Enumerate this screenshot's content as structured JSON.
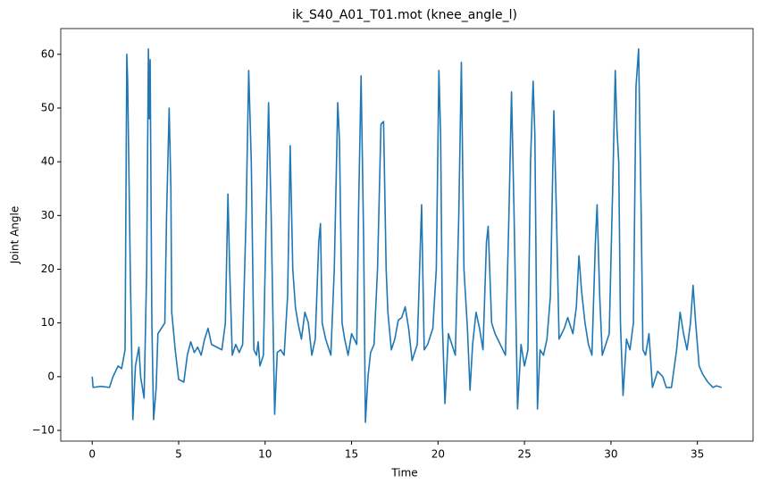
{
  "chart_data": {
    "type": "line",
    "title": "ik_S40_A01_T01.mot (knee_angle_l)",
    "x_label": "Time",
    "y_label": "Joint Angle",
    "xlim": [
      -1.82,
      38.22
    ],
    "ylim": [
      -11.99,
      64.79
    ],
    "xticks": [
      0,
      5,
      10,
      15,
      20,
      25,
      30,
      35
    ],
    "yticks": [
      {
        "value": -10,
        "label": "−10"
      },
      0,
      10,
      20,
      30,
      40,
      50,
      60
    ],
    "grid": false,
    "series": [
      {
        "name": "knee_angle_l",
        "color": "#1f77b4",
        "x": [
          0,
          0.05,
          0.5,
          1.0,
          1.2,
          1.5,
          1.7,
          1.9,
          2.0,
          2.05,
          2.2,
          2.35,
          2.5,
          2.7,
          2.8,
          3.0,
          3.15,
          3.25,
          3.3,
          3.35,
          3.45,
          3.55,
          3.7,
          3.8,
          4.0,
          4.2,
          4.3,
          4.45,
          4.55,
          4.6,
          4.8,
          5.0,
          5.3,
          5.5,
          5.7,
          5.9,
          6.1,
          6.3,
          6.5,
          6.7,
          6.9,
          7.2,
          7.5,
          7.7,
          7.85,
          7.95,
          8.1,
          8.3,
          8.5,
          8.7,
          8.9,
          9.05,
          9.2,
          9.35,
          9.5,
          9.6,
          9.7,
          9.9,
          10.0,
          10.2,
          10.35,
          10.55,
          10.7,
          10.9,
          11.1,
          11.3,
          11.45,
          11.6,
          11.75,
          11.9,
          12.1,
          12.3,
          12.5,
          12.7,
          12.9,
          13.1,
          13.2,
          13.3,
          13.5,
          13.8,
          14.0,
          14.2,
          14.3,
          14.45,
          14.6,
          14.8,
          15.0,
          15.3,
          15.4,
          15.55,
          15.7,
          15.8,
          15.95,
          16.1,
          16.3,
          16.5,
          16.7,
          16.85,
          17.0,
          17.1,
          17.3,
          17.5,
          17.7,
          17.9,
          18.1,
          18.3,
          18.5,
          18.8,
          19.05,
          19.2,
          19.4,
          19.7,
          19.9,
          20.05,
          20.15,
          20.25,
          20.4,
          20.6,
          20.8,
          21.0,
          21.2,
          21.35,
          21.5,
          21.7,
          21.85,
          22.0,
          22.2,
          22.4,
          22.6,
          22.8,
          22.9,
          23.1,
          23.3,
          23.6,
          23.9,
          24.1,
          24.25,
          24.4,
          24.6,
          24.8,
          25.0,
          25.2,
          25.35,
          25.5,
          25.6,
          25.75,
          25.9,
          26.1,
          26.3,
          26.5,
          26.7,
          26.85,
          27.0,
          27.3,
          27.5,
          27.8,
          28.0,
          28.15,
          28.3,
          28.5,
          28.7,
          28.9,
          29.1,
          29.2,
          29.35,
          29.5,
          29.7,
          29.9,
          30.1,
          30.25,
          30.35,
          30.45,
          30.55,
          30.7,
          30.9,
          31.1,
          31.3,
          31.45,
          31.6,
          31.75,
          31.85,
          32.0,
          32.2,
          32.4,
          32.7,
          33.0,
          33.2,
          33.5,
          33.8,
          34.0,
          34.2,
          34.4,
          34.6,
          34.75,
          34.9,
          35.1,
          35.3,
          35.6,
          35.9,
          36.1,
          36.4
        ],
        "values": [
          0,
          -2,
          -1.8,
          -2,
          0,
          2,
          1.5,
          5,
          60,
          55,
          20,
          -8,
          2,
          5.5,
          0,
          -4,
          20,
          61,
          48,
          59,
          10,
          -8,
          -2,
          8,
          9,
          10,
          30,
          50,
          35,
          12,
          5,
          -0.5,
          -1,
          4,
          6.5,
          4.5,
          5.5,
          4,
          7,
          9,
          6,
          5.5,
          5,
          10,
          34,
          20,
          4,
          6,
          4.5,
          6,
          30,
          57,
          40,
          5,
          4,
          6.5,
          2,
          4,
          20,
          51,
          30,
          -7,
          4.5,
          5,
          4,
          15,
          43,
          20,
          13,
          10,
          7,
          12,
          10,
          4,
          7,
          25,
          28.5,
          10,
          7,
          4,
          20,
          51,
          44,
          10,
          7,
          4,
          8,
          6,
          30,
          56,
          25,
          -8.5,
          0,
          4.5,
          6,
          20,
          47,
          47.5,
          20,
          12,
          5,
          7,
          10.5,
          11,
          13,
          9,
          3,
          6,
          32,
          5,
          6,
          9,
          20,
          57,
          45,
          10,
          -5,
          8,
          6,
          4,
          30,
          58.5,
          20,
          9,
          -2.5,
          6,
          12,
          9,
          5,
          25,
          28,
          10,
          8,
          6,
          4,
          30,
          53,
          30,
          -6,
          6,
          2,
          5,
          40,
          55,
          45,
          -6,
          5,
          4,
          7,
          15,
          49.5,
          30,
          7,
          9,
          11,
          8,
          13,
          22.5,
          16,
          10,
          6,
          4,
          25,
          32,
          15,
          4,
          6,
          8,
          35,
          57,
          46,
          40,
          10,
          -3.5,
          7,
          5,
          10,
          54,
          61,
          30,
          5,
          4,
          8,
          -2,
          1,
          0,
          -2,
          -2,
          5,
          12,
          8,
          5,
          10,
          17,
          10,
          2,
          0.5,
          -1,
          -2,
          -1.7,
          -2
        ]
      }
    ]
  }
}
